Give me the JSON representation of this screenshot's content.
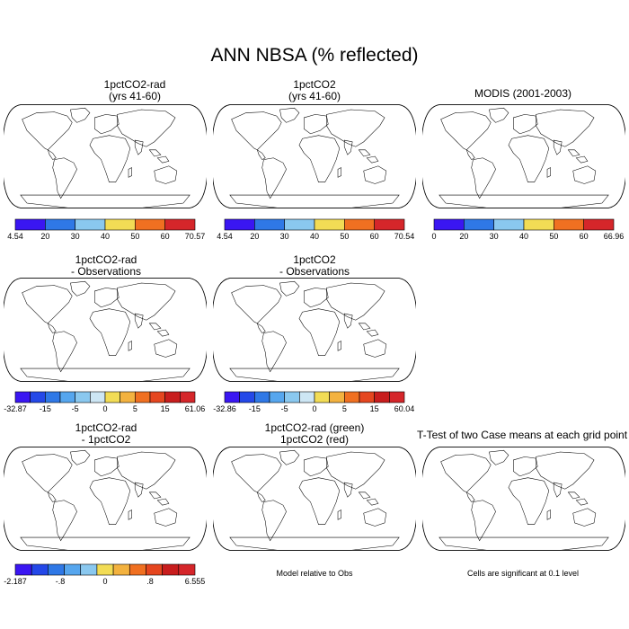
{
  "title": "ANN NBSA (% reflected)",
  "colors": {
    "land_base": "#3f6fe0",
    "ocean": "#ffffff",
    "outline": "#000000",
    "sig_red": "#e60000",
    "sig_green": "#00dd00"
  },
  "chart_data": [
    {
      "type": "heatmap",
      "panel": "1pctCO2-rad",
      "title_lines": [
        "1pctCO2-rad",
        "(yrs 41-60)"
      ],
      "colorbar": {
        "colors": [
          "#3a16f2",
          "#2f78e6",
          "#8ac8ef",
          "#f2dc55",
          "#f07021",
          "#d5262a"
        ],
        "labels": [
          "4.54",
          "20",
          "30",
          "40",
          "50",
          "60",
          "70.57"
        ]
      }
    },
    {
      "type": "heatmap",
      "panel": "1pctCO2",
      "title_lines": [
        "1pctCO2",
        "(yrs 41-60)"
      ],
      "colorbar": {
        "colors": [
          "#3a16f2",
          "#2f78e6",
          "#8ac8ef",
          "#f2dc55",
          "#f07021",
          "#d5262a"
        ],
        "labels": [
          "4.54",
          "20",
          "30",
          "40",
          "50",
          "60",
          "70.54"
        ]
      }
    },
    {
      "type": "heatmap",
      "panel": "MODIS",
      "title_lines": [
        "MODIS (2001-2003)"
      ],
      "colorbar": {
        "colors": [
          "#3a16f2",
          "#2f78e6",
          "#8ac8ef",
          "#f2dc55",
          "#f07021",
          "#d5262a"
        ],
        "labels": [
          "0",
          "20",
          "30",
          "40",
          "50",
          "60",
          "66.96"
        ]
      }
    },
    {
      "type": "heatmap",
      "panel": "1pctCO2-rad - Observations",
      "title_lines": [
        "1pctCO2-rad",
        "- Observations"
      ],
      "colorbar": {
        "colors": [
          "#3a16f2",
          "#2448e8",
          "#2f78e6",
          "#56a6ee",
          "#8ac8ef",
          "#cde6f4",
          "#f2dc55",
          "#f3b23f",
          "#f07021",
          "#e5461f",
          "#c81d1d",
          "#d5262a"
        ],
        "labels": [
          "-32.87",
          "-15",
          "-5",
          "0",
          "5",
          "15",
          "61.06"
        ]
      }
    },
    {
      "type": "heatmap",
      "panel": "1pctCO2 - Observations",
      "title_lines": [
        "1pctCO2",
        "- Observations"
      ],
      "colorbar": {
        "colors": [
          "#3a16f2",
          "#2448e8",
          "#2f78e6",
          "#56a6ee",
          "#8ac8ef",
          "#cde6f4",
          "#f2dc55",
          "#f3b23f",
          "#f07021",
          "#e5461f",
          "#c81d1d",
          "#d5262a"
        ],
        "labels": [
          "-32.86",
          "-15",
          "-5",
          "0",
          "5",
          "15",
          "60.04"
        ]
      }
    },
    {
      "type": "heatmap",
      "panel": "1pctCO2-rad - 1pctCO2",
      "title_lines": [
        "1pctCO2-rad",
        "- 1pctCO2"
      ],
      "colorbar": {
        "colors": [
          "#3a16f2",
          "#2448e8",
          "#2f78e6",
          "#56a6ee",
          "#8ac8ef",
          "#f2dc55",
          "#f3b23f",
          "#f07021",
          "#e5461f",
          "#c81d1d",
          "#d5262a"
        ],
        "labels": [
          "-2.187",
          "-.8",
          "0",
          ".8",
          "6.555"
        ]
      }
    },
    {
      "type": "heatmap",
      "panel": "Model relative to Obs",
      "title_lines": [
        "1pctCO2-rad (green)",
        "1pctCO2 (red)"
      ],
      "note": "Model relative to Obs"
    },
    {
      "type": "heatmap",
      "panel": "T-Test",
      "title_lines": [
        "T-Test of two Case means at each grid point"
      ],
      "note": "Cells are significant at 0.1 level"
    }
  ]
}
